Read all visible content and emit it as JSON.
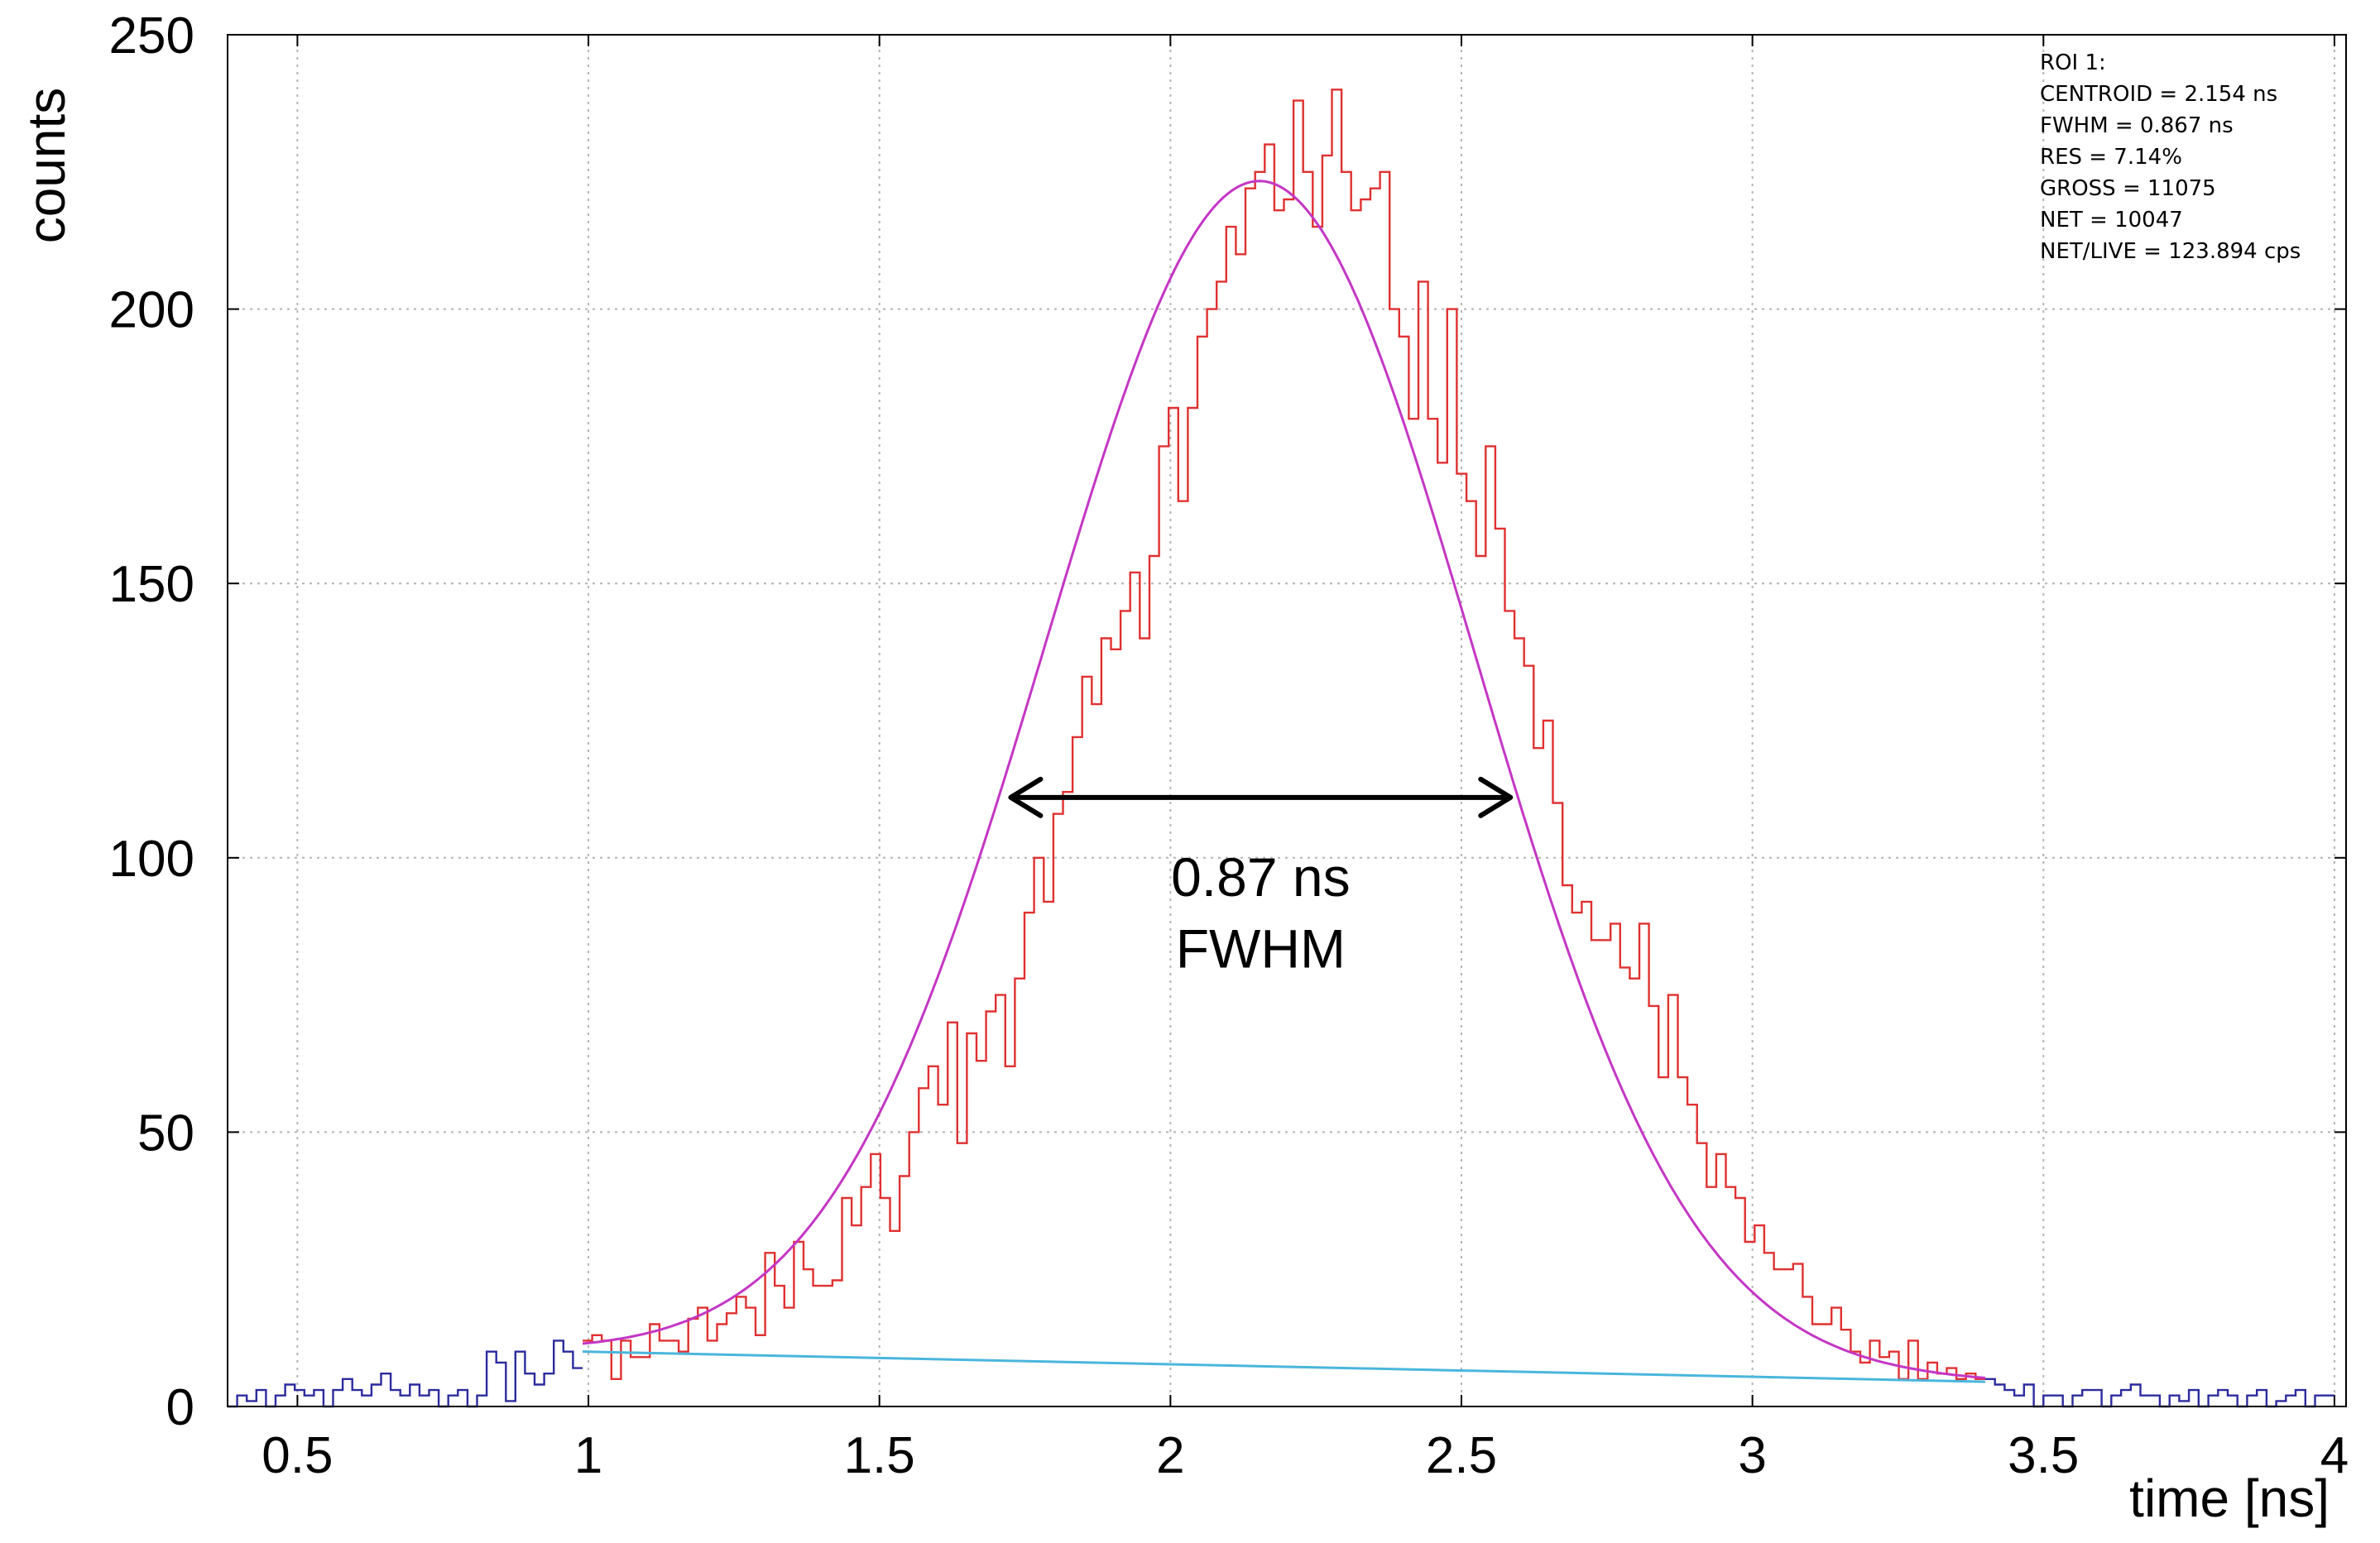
{
  "chart_data": {
    "type": "line",
    "xlabel": "time [ns]",
    "ylabel": "counts",
    "xlim": [
      0.38,
      4.02
    ],
    "ylim": [
      0,
      250
    ],
    "grid": true,
    "x_ticks": [
      0.5,
      1,
      1.5,
      2,
      2.5,
      3,
      3.5,
      4
    ],
    "x_tick_labels": [
      "0.5",
      "1",
      "1.5",
      "2",
      "2.5",
      "3",
      "3.5",
      "4"
    ],
    "y_ticks": [
      0,
      50,
      100,
      150,
      200,
      250
    ],
    "y_tick_labels": [
      "0",
      "50",
      "100",
      "150",
      "200",
      "250"
    ],
    "series": [
      {
        "role": "background-left",
        "color": "#2b2b9e",
        "x_start": 0.38,
        "x_end": 0.99,
        "values": [
          0,
          2,
          1,
          3,
          0,
          2,
          4,
          3,
          2,
          3,
          0,
          3,
          5,
          3,
          2,
          4,
          6,
          3,
          2,
          4,
          2,
          3,
          0,
          2,
          3,
          0,
          2,
          10,
          8,
          1,
          10,
          6,
          4,
          6,
          12,
          10,
          7
        ]
      },
      {
        "role": "roi",
        "color": "#e03030",
        "x_start": 0.99,
        "x_end": 3.4,
        "values": [
          12,
          13,
          12,
          5,
          12,
          9,
          9,
          15,
          12,
          12,
          10,
          16,
          18,
          12,
          15,
          17,
          20,
          18,
          13,
          28,
          22,
          18,
          30,
          25,
          22,
          22,
          23,
          38,
          33,
          40,
          46,
          38,
          32,
          42,
          50,
          58,
          62,
          55,
          70,
          48,
          68,
          63,
          72,
          75,
          62,
          78,
          90,
          100,
          92,
          108,
          112,
          122,
          133,
          128,
          140,
          138,
          145,
          152,
          140,
          155,
          175,
          182,
          165,
          182,
          195,
          200,
          205,
          215,
          210,
          222,
          225,
          230,
          218,
          220,
          238,
          225,
          215,
          228,
          240,
          225,
          218,
          220,
          222,
          225,
          200,
          195,
          180,
          205,
          180,
          172,
          200,
          170,
          165,
          155,
          175,
          160,
          145,
          140,
          135,
          120,
          125,
          110,
          95,
          90,
          92,
          85,
          85,
          88,
          80,
          78,
          88,
          73,
          60,
          75,
          60,
          55,
          48,
          40,
          46,
          40,
          38,
          30,
          33,
          28,
          25,
          25,
          26,
          20,
          15,
          15,
          18,
          14,
          10,
          8,
          12,
          9,
          10,
          5,
          12,
          5,
          8,
          6,
          7,
          5,
          6,
          5
        ]
      },
      {
        "role": "background-right",
        "color": "#2b2b9e",
        "x_start": 3.4,
        "x_end": 4.0,
        "values": [
          5,
          4,
          3,
          2,
          4,
          0,
          2,
          2,
          0,
          2,
          3,
          3,
          0,
          2,
          3,
          4,
          2,
          2,
          0,
          2,
          1,
          3,
          0,
          2,
          3,
          2,
          0,
          2,
          3,
          0,
          1,
          2,
          3,
          0,
          2,
          2
        ]
      },
      {
        "role": "gaussian-fit",
        "color": "#c436c4",
        "x_start": 0.99,
        "x_end": 3.4,
        "centroid": 2.154,
        "sigma": 0.3682,
        "amplitude": 216,
        "baseline_start": 10,
        "baseline_end": 4.5
      },
      {
        "role": "baseline",
        "color": "#4ab6dc",
        "x": [
          0.99,
          3.4
        ],
        "y": [
          10,
          4.5
        ]
      }
    ],
    "annotations": {
      "fwhm_arrow": {
        "x1": 1.72,
        "x2": 2.59,
        "y": 111
      },
      "fwhm_value_label": "0.87 ns",
      "fwhm_name_label": "FWHM",
      "fwhm_label_position": {
        "x": 2.155,
        "y_top": 93,
        "y_bottom": 80
      }
    },
    "info_box": {
      "placement": "top-right",
      "lines": [
        "ROI 1:",
        "CENTROID = 2.154 ns",
        "FWHM = 0.867 ns",
        "RES = 7.14%",
        "GROSS = 11075",
        "NET = 10047",
        "NET/LIVE = 123.894 cps"
      ]
    }
  }
}
